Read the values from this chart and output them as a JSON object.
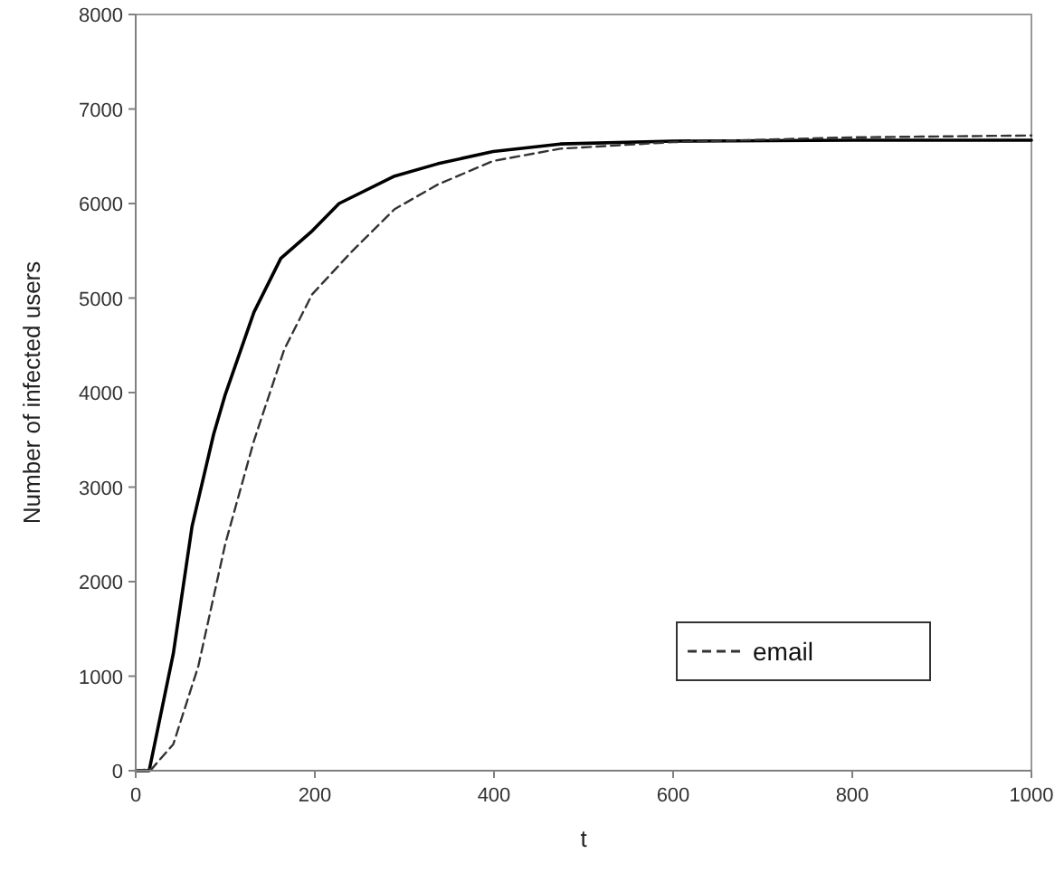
{
  "chart_data": {
    "type": "line",
    "xlabel": "t",
    "ylabel": "Number of infected users",
    "xlim": [
      0,
      1000
    ],
    "ylim": [
      0,
      8000
    ],
    "xticks": [
      0,
      200,
      400,
      600,
      800,
      1000
    ],
    "yticks": [
      0,
      1000,
      2000,
      3000,
      4000,
      5000,
      6000,
      7000,
      8000
    ],
    "grid": false,
    "legend": "bottom right",
    "series": [
      {
        "color": "#000000",
        "line_style": "solid",
        "x": [
          0,
          15,
          42,
          63,
          87,
          100,
          132,
          162,
          197,
          227,
          289,
          337,
          399,
          474,
          600,
          800,
          1000
        ],
        "values": [
          0,
          0,
          1240,
          2590,
          3560,
          3980,
          4850,
          5420,
          5710,
          6000,
          6290,
          6420,
          6550,
          6630,
          6660,
          6670,
          6670
        ]
      },
      {
        "name": "email",
        "color": "#333333",
        "line_style": "dashed",
        "x": [
          0,
          18,
          42,
          70,
          100,
          132,
          166,
          197,
          241,
          289,
          337,
          399,
          474,
          600,
          800,
          1000
        ],
        "values": [
          0,
          20,
          280,
          1110,
          2400,
          3490,
          4460,
          5040,
          5490,
          5940,
          6200,
          6450,
          6580,
          6650,
          6700,
          6720
        ]
      }
    ]
  }
}
